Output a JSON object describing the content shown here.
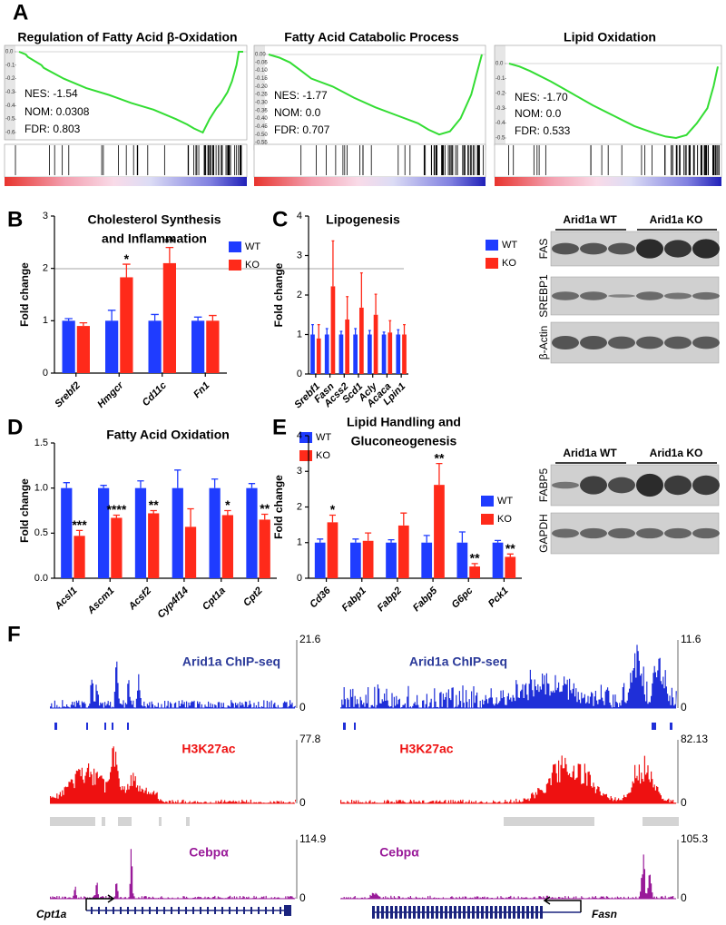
{
  "panel_letters": [
    "A",
    "B",
    "C",
    "D",
    "E",
    "F"
  ],
  "chart_data": [
    {
      "type": "line",
      "title": "Regulation of Fatty Acid β-Oxidation",
      "annotations": [
        "NES: -1.54",
        "NOM: 0.0308",
        "FDR: 0.803"
      ],
      "x": [
        0,
        3,
        4,
        10,
        11,
        20,
        30,
        40,
        50,
        60,
        70,
        75,
        78,
        82,
        85,
        88,
        90,
        93,
        95,
        97,
        98,
        100
      ],
      "values": [
        0,
        -0.02,
        -0.04,
        -0.1,
        -0.12,
        -0.2,
        -0.27,
        -0.32,
        -0.38,
        -0.43,
        -0.5,
        -0.54,
        -0.57,
        -0.6,
        -0.5,
        -0.42,
        -0.38,
        -0.3,
        -0.22,
        -0.1,
        0,
        0
      ],
      "color": "#33dd33",
      "xlim": [
        0,
        100
      ],
      "ylim": [
        -0.6,
        0
      ],
      "yticks": [
        {
          "value": 0,
          "label": "0.0"
        },
        -0.1,
        -0.2,
        -0.3,
        -0.4,
        -0.5,
        -0.6
      ]
    },
    {
      "type": "line",
      "title": "Fatty Acid Catabolic Process",
      "annotations": [
        "NES: -1.77",
        "NOM: 0.0",
        "FDR: 0.707"
      ],
      "x": [
        0,
        5,
        10,
        15,
        20,
        30,
        40,
        50,
        60,
        70,
        75,
        80,
        85,
        90,
        95,
        98,
        100
      ],
      "values": [
        0,
        -0.02,
        -0.05,
        -0.1,
        -0.15,
        -0.2,
        -0.27,
        -0.33,
        -0.38,
        -0.43,
        -0.47,
        -0.5,
        -0.48,
        -0.4,
        -0.25,
        -0.1,
        0
      ],
      "color": "#33dd33",
      "xlim": [
        0,
        100
      ],
      "ylim": [
        -0.55,
        0
      ],
      "yticks": [
        {
          "value": 0,
          "label": "0.00"
        },
        -0.05,
        {
          "value": -0.1,
          "label": "-0.10"
        },
        -0.15,
        {
          "value": -0.2,
          "label": "-0.20"
        },
        -0.25,
        {
          "value": -0.3,
          "label": "-0.30"
        },
        -0.35,
        {
          "value": -0.4,
          "label": "-0.40"
        },
        -0.45,
        {
          "value": -0.5,
          "label": "-0.50"
        },
        -0.55
      ]
    },
    {
      "type": "line",
      "title": "Lipid Oxidation",
      "annotations": [
        "NES: -1.70",
        "NOM: 0.0",
        "FDR: 0.533"
      ],
      "x": [
        0,
        5,
        10,
        20,
        30,
        40,
        50,
        60,
        70,
        75,
        80,
        85,
        90,
        95,
        98,
        100
      ],
      "values": [
        0,
        -0.02,
        -0.05,
        -0.12,
        -0.2,
        -0.28,
        -0.35,
        -0.42,
        -0.47,
        -0.49,
        -0.5,
        -0.48,
        -0.4,
        -0.3,
        -0.15,
        -0.02
      ],
      "color": "#33dd33",
      "xlim": [
        0,
        100
      ],
      "ylim": [
        -0.5,
        0
      ],
      "yticks": [
        {
          "value": 0,
          "label": "0.0"
        },
        -0.1,
        -0.2,
        -0.3,
        -0.4,
        -0.5
      ]
    },
    {
      "type": "bar",
      "title": [
        "Cholesterol Synthesis",
        "and Inflammation"
      ],
      "y_label": "Fold change",
      "categories": [
        "Srebf2",
        "Hmgcr",
        "Cd11c",
        "Fn1"
      ],
      "series": [
        {
          "name": "WT",
          "color": "#1f3cff",
          "values": [
            1,
            1,
            1,
            1
          ],
          "errors": [
            0.04,
            0.2,
            0.12,
            0.07
          ],
          "significance": [
            null,
            null,
            null,
            null
          ]
        },
        {
          "name": "KO",
          "color": "#ff2a1a",
          "values": [
            0.9,
            1.83,
            2.1,
            1.0
          ],
          "errors": [
            0.06,
            0.25,
            0.3,
            0.1
          ],
          "significance": [
            null,
            "*",
            "**",
            null
          ]
        }
      ],
      "ylim": [
        0,
        3
      ],
      "yticks": [
        0,
        1,
        2,
        3
      ]
    },
    {
      "type": "bar",
      "title": [
        "Lipogenesis"
      ],
      "y_label": "Fold change",
      "categories": [
        "Srebf1",
        "Fasn",
        "Acss2",
        "Scd1",
        "Acly",
        "Acaca",
        "Lpin1"
      ],
      "series": [
        {
          "name": "WT",
          "color": "#1f3cff",
          "values": [
            1,
            1,
            1,
            1,
            1,
            1,
            1
          ],
          "errors": [
            0.25,
            0.15,
            0.08,
            0.15,
            0.1,
            0.06,
            0.12
          ],
          "significance": [
            null,
            null,
            null,
            null,
            null,
            null,
            null
          ]
        },
        {
          "name": "KO",
          "color": "#ff2a1a",
          "values": [
            0.9,
            2.22,
            1.38,
            1.68,
            1.5,
            1.05,
            1.0
          ],
          "errors": [
            0.35,
            1.15,
            0.58,
            0.88,
            0.52,
            0.3,
            0.25
          ],
          "significance": [
            null,
            null,
            null,
            null,
            null,
            null,
            null
          ]
        }
      ],
      "ylim": [
        0,
        4
      ],
      "yticks": [
        0,
        1,
        2,
        3,
        4
      ]
    },
    {
      "type": "bar",
      "title": [
        "Fatty Acid Oxidation"
      ],
      "y_label": "Fold change",
      "categories": [
        "Acsl1",
        "Ascm1",
        "Acsf2",
        "Cyp4f14",
        "Cpt1a",
        "Cpt2"
      ],
      "series": [
        {
          "name": "WT",
          "color": "#1f3cff",
          "values": [
            1,
            1,
            1,
            1,
            1,
            1
          ],
          "errors": [
            0.06,
            0.03,
            0.08,
            0.2,
            0.1,
            0.05
          ],
          "significance": [
            null,
            null,
            null,
            null,
            null,
            null
          ]
        },
        {
          "name": "KO",
          "color": "#ff2a1a",
          "values": [
            0.47,
            0.67,
            0.72,
            0.57,
            0.7,
            0.65
          ],
          "errors": [
            0.06,
            0.03,
            0.03,
            0.2,
            0.05,
            0.06
          ],
          "significance": [
            "***",
            "****",
            "**",
            null,
            "*",
            "**"
          ]
        }
      ],
      "ylim": [
        0,
        1.5
      ],
      "yticks": [
        {
          "value": 0,
          "label": "0.0"
        },
        0.5,
        {
          "value": 1,
          "label": "1.0"
        },
        1.5
      ]
    },
    {
      "type": "bar",
      "title": [
        "Lipid Handling and",
        "Gluconeogenesis"
      ],
      "y_label": "Fold change",
      "categories": [
        "Cd36",
        "Fabp1",
        "Fabp2",
        "Fabp5",
        "G6pc",
        "Pck1"
      ],
      "series": [
        {
          "name": "WT",
          "color": "#1f3cff",
          "values": [
            1,
            1,
            1,
            1,
            1,
            1
          ],
          "errors": [
            0.1,
            0.1,
            0.08,
            0.2,
            0.3,
            0.06
          ],
          "significance": [
            null,
            null,
            null,
            null,
            null,
            null
          ]
        },
        {
          "name": "KO",
          "color": "#ff2a1a",
          "values": [
            1.57,
            1.05,
            1.48,
            2.62,
            0.33,
            0.6
          ],
          "errors": [
            0.2,
            0.22,
            0.35,
            0.6,
            0.08,
            0.08
          ],
          "significance": [
            "*",
            null,
            null,
            "**",
            "**",
            "**"
          ]
        }
      ],
      "ylim": [
        0,
        4
      ],
      "yticks": [
        0,
        1,
        2,
        3,
        4
      ]
    }
  ],
  "blots": {
    "top": {
      "groups": [
        "Arid1a WT",
        "Arid1a KO"
      ],
      "lanes": [
        "FAS",
        "SREBP1",
        "β-Actin"
      ]
    },
    "bottom": {
      "groups": [
        "Arid1a WT",
        "Arid1a KO"
      ],
      "lanes": [
        "FABP5",
        "GAPDH"
      ]
    }
  },
  "tracks": {
    "left": {
      "gene": "Cpt1a",
      "rows": [
        {
          "label": "Arid1a ChIP-seq",
          "max": 21.6,
          "min": 0
        },
        {
          "label": "H3K27ac",
          "max": 77.8,
          "min": 0
        },
        {
          "label": "Cebpα",
          "max": 114.9,
          "min": 0
        }
      ]
    },
    "right": {
      "gene": "Fasn",
      "rows": [
        {
          "label": "Arid1a ChIP-seq",
          "max": 11.6,
          "min": 0
        },
        {
          "label": "H3K27ac",
          "max": 82.13,
          "min": 0
        },
        {
          "label": "Cebpα",
          "max": 105.3,
          "min": 0
        }
      ]
    }
  }
}
